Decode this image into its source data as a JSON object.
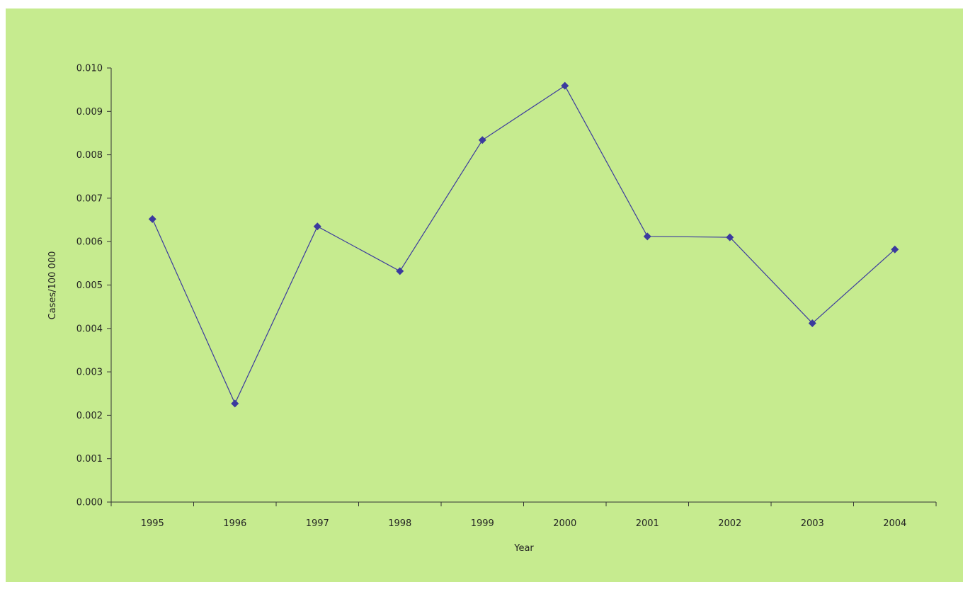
{
  "colors": {
    "background": "#c6eb8f",
    "series": "#3b3a9e",
    "axis": "#333333"
  },
  "chart_data": {
    "type": "line",
    "title": "",
    "xlabel": "Year",
    "ylabel": "Cases/100 000",
    "categories": [
      "1995",
      "1996",
      "1997",
      "1998",
      "1999",
      "2000",
      "2001",
      "2002",
      "2003",
      "2004"
    ],
    "series": [
      {
        "values": [
          0.00652,
          0.00227,
          0.00635,
          0.00532,
          0.00834,
          0.00959,
          0.00612,
          0.0061,
          0.00412,
          0.00582
        ],
        "marker": "diamond"
      }
    ],
    "ylim": [
      0,
      0.01
    ],
    "yticks": [
      "0.000",
      "0.001",
      "0.002",
      "0.003",
      "0.004",
      "0.005",
      "0.006",
      "0.007",
      "0.008",
      "0.009",
      "0.010"
    ],
    "grid": false,
    "legend": "none"
  }
}
